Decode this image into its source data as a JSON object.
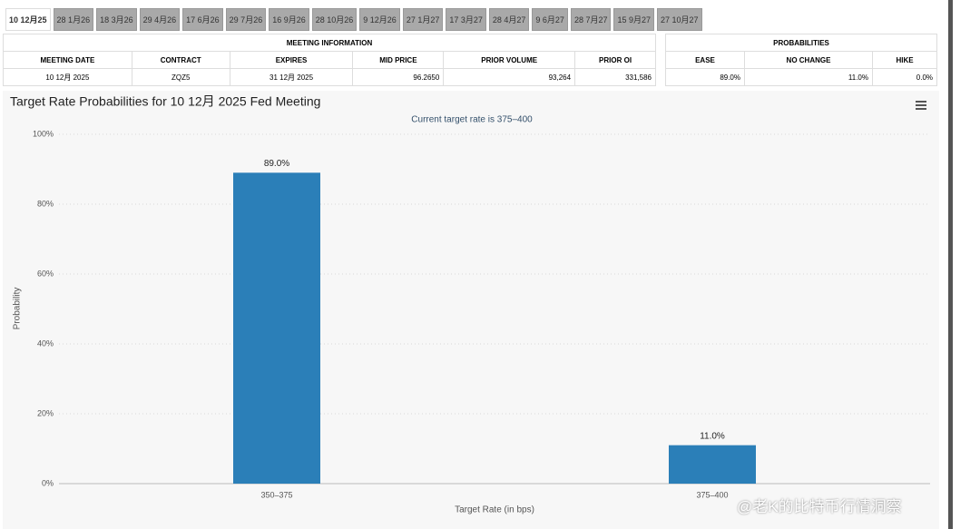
{
  "tabs": [
    "10 12月25",
    "28 1月26",
    "18 3月26",
    "29 4月26",
    "17 6月26",
    "29 7月26",
    "16 9月26",
    "28 10月26",
    "9 12月26",
    "27 1月27",
    "17 3月27",
    "28 4月27",
    "9 6月27",
    "28 7月27",
    "15 9月27",
    "27 10月27"
  ],
  "meeting_info": {
    "title": "MEETING INFORMATION",
    "headers": [
      "MEETING DATE",
      "CONTRACT",
      "EXPIRES",
      "MID PRICE",
      "PRIOR VOLUME",
      "PRIOR OI"
    ],
    "row": [
      "10 12月 2025",
      "ZQZ5",
      "31 12月 2025",
      "96.2650",
      "93,264",
      "331,586"
    ]
  },
  "probabilities": {
    "title": "PROBABILITIES",
    "headers": [
      "EASE",
      "NO CHANGE",
      "HIKE"
    ],
    "row": [
      "89.0%",
      "11.0%",
      "0.0%"
    ]
  },
  "chart_data": {
    "type": "bar",
    "title": "Target Rate Probabilities for 10 12月 2025 Fed Meeting",
    "subtitle": "Current target rate is 375–400",
    "x_label": "Target Rate (in bps)",
    "y_label": "Probability",
    "categories": [
      "350–375",
      "375–400"
    ],
    "values": [
      89,
      11
    ],
    "value_labels": [
      "89.0%",
      "11.0%"
    ],
    "color": "#2b7fb8",
    "ylim": [
      0,
      100
    ],
    "yticks": [
      {
        "value": 0,
        "label": "0%"
      },
      {
        "value": 20,
        "label": "20%"
      },
      {
        "value": 40,
        "label": "40%"
      },
      {
        "value": 60,
        "label": "60%"
      },
      {
        "value": 80,
        "label": "80%"
      },
      {
        "value": 100,
        "label": "100%"
      }
    ],
    "grid": true
  },
  "watermark": "@老K的比特币行情洞察"
}
